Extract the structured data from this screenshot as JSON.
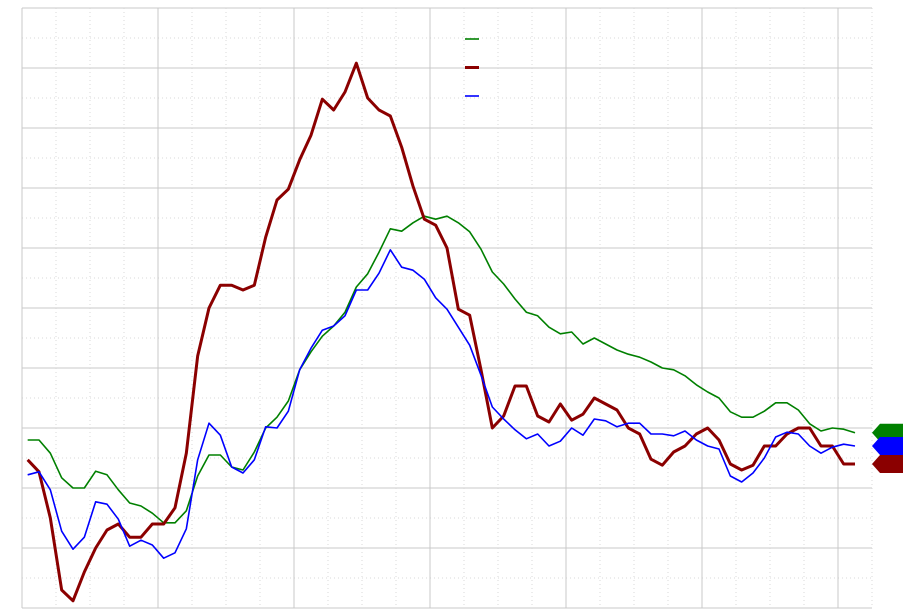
{
  "chart_data": {
    "type": "line",
    "x": [
      0,
      1,
      2,
      3,
      4,
      5,
      6,
      7,
      8,
      9,
      10,
      11,
      12,
      13,
      14,
      15,
      16,
      17,
      18,
      19,
      20,
      21,
      22,
      23,
      24,
      25,
      26,
      27,
      28,
      29,
      30,
      31,
      32,
      33,
      34,
      35,
      36,
      37,
      38,
      39,
      40,
      41,
      42,
      43,
      44,
      45,
      46,
      47,
      48,
      49,
      50,
      51,
      52,
      53,
      54,
      55,
      56,
      57,
      58,
      59,
      60,
      61,
      62,
      63,
      64,
      65,
      66,
      67,
      68,
      69,
      70,
      71,
      72,
      73
    ],
    "series": [
      {
        "color": "#008000",
        "values": [
          28,
          28,
          25.8,
          21.7,
          20,
          20,
          22.8,
          22.2,
          19.7,
          17.5,
          17,
          15.8,
          14.2,
          14.2,
          16.2,
          22,
          25.5,
          25.5,
          23.5,
          23,
          26,
          30,
          31.8,
          34.5,
          39.7,
          42.7,
          45.3,
          47,
          49.3,
          53.5,
          55.7,
          59.3,
          63.2,
          62.8,
          64.2,
          65.3,
          64.8,
          65.3,
          64.2,
          62.7,
          59.8,
          56,
          54,
          51.5,
          49.3,
          48.7,
          46.8,
          45.7,
          46,
          44,
          45,
          44,
          43,
          42.3,
          41.8,
          41,
          40,
          39.7,
          38.7,
          37.2,
          36,
          35,
          32.7,
          31.8,
          31.8,
          32.8,
          34.2,
          34.2,
          33,
          30.7,
          29.5,
          30,
          29.8,
          29.2
        ]
      },
      {
        "color": "#8b0000",
        "values": [
          24.7,
          22.7,
          15,
          3,
          1.2,
          6,
          10,
          13,
          14,
          11.8,
          11.8,
          14,
          14,
          16.7,
          25.8,
          42,
          50,
          53.8,
          53.8,
          53,
          53.8,
          61.8,
          68,
          69.8,
          74.7,
          78.8,
          84.8,
          83,
          86,
          90.8,
          85,
          83,
          82,
          76.8,
          70.3,
          64.8,
          63.8,
          60,
          49.8,
          48.8,
          39.7,
          30,
          32,
          37,
          37,
          32,
          31,
          34,
          31.3,
          32.3,
          35,
          34,
          33,
          30,
          29,
          24.8,
          23.8,
          26,
          27,
          29,
          30,
          28,
          24,
          23,
          23.8,
          27,
          27,
          29,
          30,
          30,
          27,
          27,
          24,
          24
        ]
      },
      {
        "color": "#0000ff",
        "values": [
          22.2,
          22.7,
          19.7,
          12.8,
          9.8,
          11.8,
          17.7,
          17.3,
          14.8,
          10.3,
          11.3,
          10.5,
          8.3,
          9.2,
          13.2,
          24.7,
          30.8,
          28.8,
          23.5,
          22.5,
          24.7,
          30.2,
          30,
          32.8,
          39.7,
          43.3,
          46.3,
          47,
          48.7,
          53,
          53,
          55.8,
          59.7,
          56.8,
          56.3,
          54.8,
          51.7,
          49.8,
          46.8,
          43.8,
          38.8,
          33.5,
          31.5,
          29.7,
          28.2,
          29,
          27,
          27.8,
          30,
          28.8,
          31.5,
          31.2,
          30.2,
          30.8,
          30.8,
          29,
          29,
          28.7,
          29.5,
          28,
          27,
          26.5,
          22,
          21,
          22.5,
          25,
          28.5,
          29.3,
          29,
          27,
          25.8,
          26.8,
          27.3,
          27
        ]
      }
    ],
    "xlim": [
      -0.5,
      74.5
    ],
    "xticks": [
      -0.5,
      2.5,
      5.5,
      8.5,
      11.5,
      14.5,
      17.5,
      20.5,
      23.5,
      26.5,
      29.5,
      32.5,
      35.5,
      38.5,
      41.5,
      44.5,
      47.5,
      50.5,
      53.5,
      56.5,
      59.5,
      62.5,
      65.5,
      68.5,
      71.5,
      74.5
    ],
    "ylim": [
      0,
      100
    ],
    "yticks": [
      0,
      5,
      10,
      15,
      20,
      25,
      30,
      35,
      40,
      45,
      50,
      55,
      60,
      65,
      70,
      75,
      80,
      85,
      90,
      95,
      100
    ],
    "grid": true
  }
}
